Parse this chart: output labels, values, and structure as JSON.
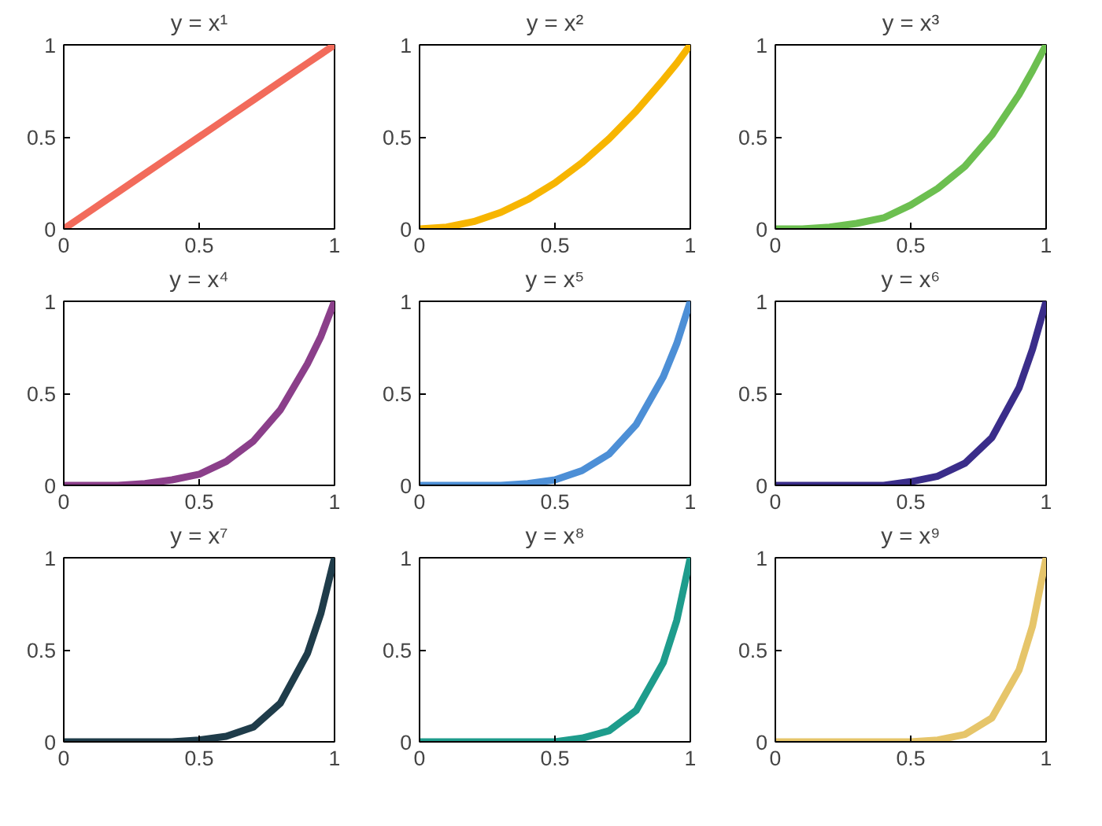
{
  "chart_data": [
    {
      "type": "line",
      "title": "y = x¹",
      "x": [
        0,
        0.1,
        0.2,
        0.3,
        0.4,
        0.5,
        0.6,
        0.7,
        0.8,
        0.9,
        0.95,
        1
      ],
      "series": [
        {
          "color": "#f26b5b",
          "values": [
            0,
            0.1,
            0.2,
            0.3,
            0.4,
            0.5,
            0.6,
            0.7,
            0.8,
            0.9,
            0.95,
            1
          ]
        }
      ],
      "xlim": [
        0,
        1
      ],
      "ylim": [
        0,
        1
      ],
      "xticks": [
        0,
        0.5,
        1
      ],
      "yticks": [
        0,
        0.5,
        1
      ]
    },
    {
      "type": "line",
      "title": "y = x²",
      "x": [
        0,
        0.1,
        0.2,
        0.3,
        0.4,
        0.5,
        0.6,
        0.7,
        0.8,
        0.9,
        0.95,
        1
      ],
      "series": [
        {
          "color": "#f7b500",
          "values": [
            0,
            0.01,
            0.04,
            0.09,
            0.16,
            0.25,
            0.36,
            0.49,
            0.64,
            0.81,
            0.9,
            1
          ]
        }
      ],
      "xlim": [
        0,
        1
      ],
      "ylim": [
        0,
        1
      ],
      "xticks": [
        0,
        0.5,
        1
      ],
      "yticks": [
        0,
        0.5,
        1
      ]
    },
    {
      "type": "line",
      "title": "y = x³",
      "x": [
        0,
        0.1,
        0.2,
        0.3,
        0.4,
        0.5,
        0.6,
        0.7,
        0.8,
        0.9,
        0.95,
        1
      ],
      "series": [
        {
          "color": "#6cbf50",
          "values": [
            0,
            0,
            0.01,
            0.03,
            0.06,
            0.13,
            0.22,
            0.34,
            0.51,
            0.73,
            0.86,
            1
          ]
        }
      ],
      "xlim": [
        0,
        1
      ],
      "ylim": [
        0,
        1
      ],
      "xticks": [
        0,
        0.5,
        1
      ],
      "yticks": [
        0,
        0.5,
        1
      ]
    },
    {
      "type": "line",
      "title": "y = x⁴",
      "x": [
        0,
        0.1,
        0.2,
        0.3,
        0.4,
        0.5,
        0.6,
        0.7,
        0.8,
        0.9,
        0.95,
        1
      ],
      "series": [
        {
          "color": "#8b3f8a",
          "values": [
            0,
            0,
            0,
            0.01,
            0.03,
            0.06,
            0.13,
            0.24,
            0.41,
            0.66,
            0.81,
            1
          ]
        }
      ],
      "xlim": [
        0,
        1
      ],
      "ylim": [
        0,
        1
      ],
      "xticks": [
        0,
        0.5,
        1
      ],
      "yticks": [
        0,
        0.5,
        1
      ]
    },
    {
      "type": "line",
      "title": "y = x⁵",
      "x": [
        0,
        0.1,
        0.2,
        0.3,
        0.4,
        0.5,
        0.6,
        0.7,
        0.8,
        0.9,
        0.95,
        1
      ],
      "series": [
        {
          "color": "#4d8fd6",
          "values": [
            0,
            0,
            0,
            0,
            0.01,
            0.03,
            0.08,
            0.17,
            0.33,
            0.59,
            0.77,
            1
          ]
        }
      ],
      "xlim": [
        0,
        1
      ],
      "ylim": [
        0,
        1
      ],
      "xticks": [
        0,
        0.5,
        1
      ],
      "yticks": [
        0,
        0.5,
        1
      ]
    },
    {
      "type": "line",
      "title": "y = x⁶",
      "x": [
        0,
        0.1,
        0.2,
        0.3,
        0.4,
        0.5,
        0.6,
        0.7,
        0.8,
        0.9,
        0.95,
        1
      ],
      "series": [
        {
          "color": "#3a2d8a",
          "values": [
            0,
            0,
            0,
            0,
            0,
            0.02,
            0.05,
            0.12,
            0.26,
            0.53,
            0.74,
            1
          ]
        }
      ],
      "xlim": [
        0,
        1
      ],
      "ylim": [
        0,
        1
      ],
      "xticks": [
        0,
        0.5,
        1
      ],
      "yticks": [
        0,
        0.5,
        1
      ]
    },
    {
      "type": "line",
      "title": "y = x⁷",
      "x": [
        0,
        0.1,
        0.2,
        0.3,
        0.4,
        0.5,
        0.6,
        0.7,
        0.8,
        0.9,
        0.95,
        1
      ],
      "series": [
        {
          "color": "#1f3c4a",
          "values": [
            0,
            0,
            0,
            0,
            0,
            0.01,
            0.03,
            0.08,
            0.21,
            0.48,
            0.7,
            1
          ]
        }
      ],
      "xlim": [
        0,
        1
      ],
      "ylim": [
        0,
        1
      ],
      "xticks": [
        0,
        0.5,
        1
      ],
      "yticks": [
        0,
        0.5,
        1
      ]
    },
    {
      "type": "line",
      "title": "y = x⁸",
      "x": [
        0,
        0.1,
        0.2,
        0.3,
        0.4,
        0.5,
        0.6,
        0.7,
        0.8,
        0.9,
        0.95,
        1
      ],
      "series": [
        {
          "color": "#1e9c8c",
          "values": [
            0,
            0,
            0,
            0,
            0,
            0,
            0.02,
            0.06,
            0.17,
            0.43,
            0.66,
            1
          ]
        }
      ],
      "xlim": [
        0,
        1
      ],
      "ylim": [
        0,
        1
      ],
      "xticks": [
        0,
        0.5,
        1
      ],
      "yticks": [
        0,
        0.5,
        1
      ]
    },
    {
      "type": "line",
      "title": "y = x⁹",
      "x": [
        0,
        0.1,
        0.2,
        0.3,
        0.4,
        0.5,
        0.6,
        0.7,
        0.8,
        0.9,
        0.95,
        1
      ],
      "series": [
        {
          "color": "#e6c56a",
          "values": [
            0,
            0,
            0,
            0,
            0,
            0,
            0.01,
            0.04,
            0.13,
            0.39,
            0.63,
            1
          ]
        }
      ],
      "xlim": [
        0,
        1
      ],
      "ylim": [
        0,
        1
      ],
      "xticks": [
        0,
        0.5,
        1
      ],
      "yticks": [
        0,
        0.5,
        1
      ]
    }
  ]
}
